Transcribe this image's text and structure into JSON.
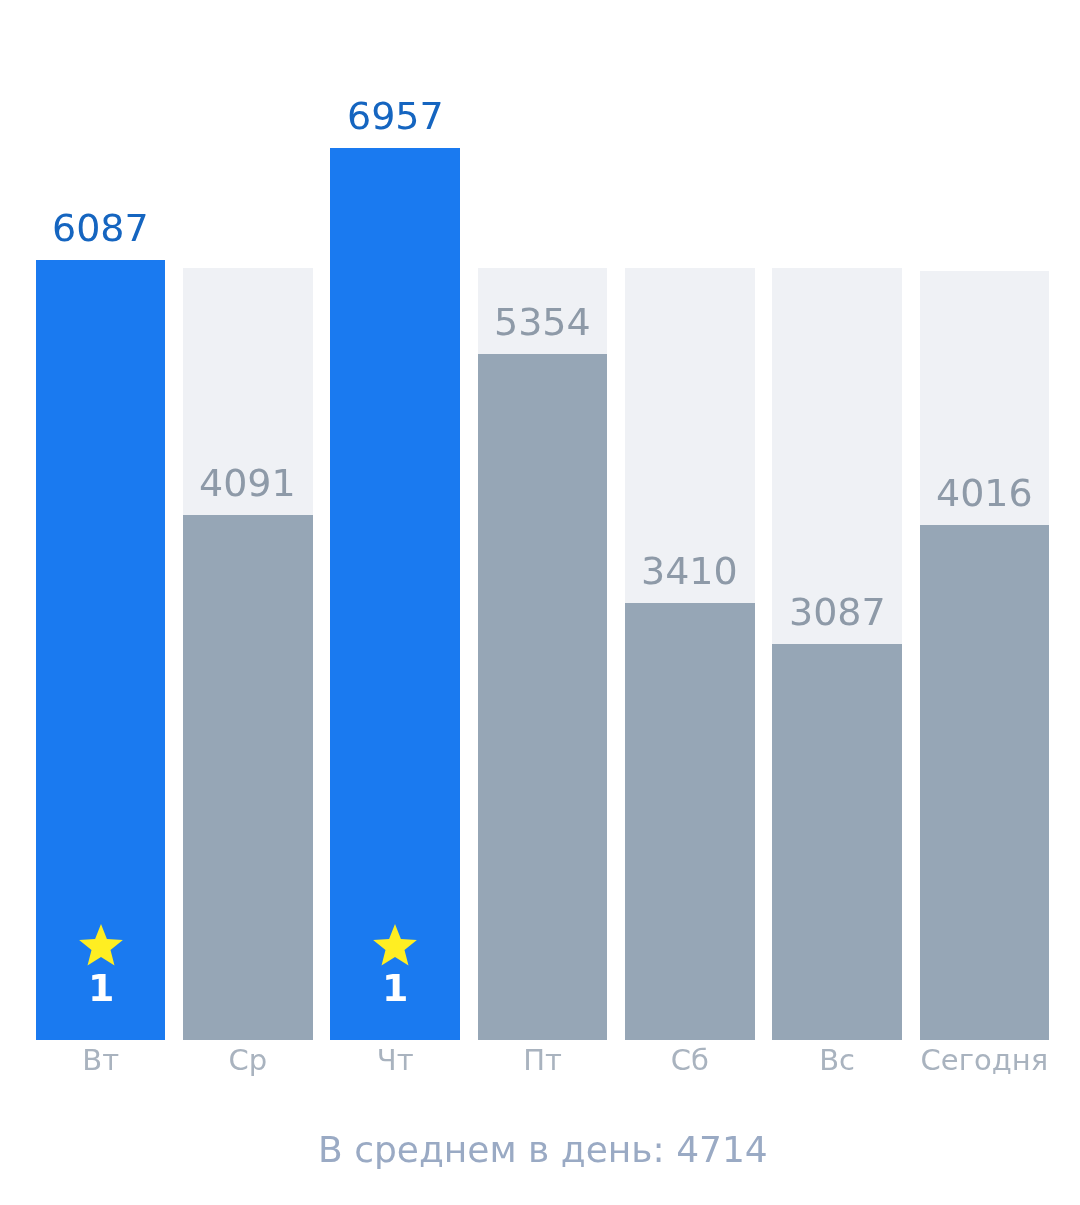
{
  "chart_data": {
    "type": "bar",
    "stacked": true,
    "categories": [
      "Вт",
      "Ср",
      "Чт",
      "Пт",
      "Сб",
      "Вс",
      "Сегодня"
    ],
    "series": [
      {
        "colors": [
          "#1a7af0",
          "#96a6b6",
          "#1a7af0",
          "#96a6b6",
          "#96a6b6",
          "#96a6b6",
          "#96a6b6"
        ],
        "values": [
          6087,
          4091,
          6957,
          5354,
          3410,
          3087,
          4016
        ],
        "value_labels": [
          "6087",
          "4091",
          "6957",
          "5354",
          "3410",
          "3087",
          "4016"
        ]
      },
      {
        "color": "#eff1f5",
        "values": [
          null,
          1930,
          null,
          667,
          2611,
          2934,
          1985
        ]
      }
    ],
    "annotations": [
      {
        "text": "1",
        "x": "Вт",
        "y": 0
      },
      {
        "text": "1",
        "x": "Чт",
        "y": 0
      },
      "В среднем в день: 4714"
    ],
    "grid": false
  }
}
